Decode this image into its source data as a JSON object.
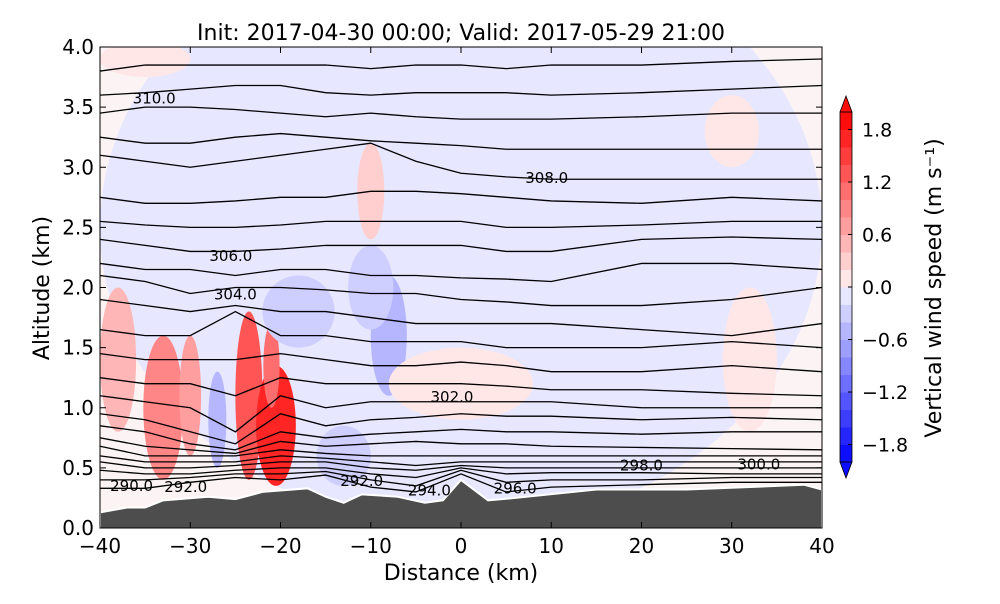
{
  "chart_data": {
    "type": "heatmap",
    "title": "Init: 2017-04-30 00:00; Valid: 2017-05-29 21:00",
    "xlabel": "Distance (km)",
    "ylabel": "Altitude (km)",
    "xlim": [
      -40,
      40
    ],
    "ylim": [
      0,
      4
    ],
    "xticks": [
      "−40",
      "−30",
      "−20",
      "−10",
      "0",
      "10",
      "20",
      "30",
      "40"
    ],
    "xtick_values": [
      -40,
      -30,
      -20,
      -10,
      0,
      10,
      20,
      30,
      40
    ],
    "yticks": [
      "0.0",
      "0.5",
      "1.0",
      "1.5",
      "2.0",
      "2.5",
      "3.0",
      "3.5",
      "4.0"
    ],
    "ytick_values": [
      0,
      0.5,
      1,
      1.5,
      2,
      2.5,
      3,
      3.5,
      4
    ],
    "colorbar": {
      "label": "Vertical wind speed (m s⁻¹)",
      "range": [
        -2,
        2
      ],
      "step": 0.2,
      "ticks": [
        "1.8",
        "1.2",
        "0.6",
        "0.0",
        "−0.6",
        "−1.2",
        "−1.8"
      ],
      "tick_values": [
        1.8,
        1.2,
        0.6,
        0,
        -0.6,
        -1.2,
        -1.8
      ],
      "pos_color": "#ff0000",
      "neg_color": "#0000ff"
    },
    "vertical_wind_features": [
      {
        "x": 0,
        "z": 2.5,
        "wx": 40,
        "wz": 2.5,
        "value": -0.1
      },
      {
        "x": -38,
        "z": 1.4,
        "wx": 2,
        "wz": 0.6,
        "value": 0.6
      },
      {
        "x": -33,
        "z": 1.0,
        "wx": 2.2,
        "wz": 0.6,
        "value": 1.0
      },
      {
        "x": -30,
        "z": 1.1,
        "wx": 1.2,
        "wz": 0.5,
        "value": 0.8
      },
      {
        "x": -27,
        "z": 0.9,
        "wx": 1.0,
        "wz": 0.4,
        "value": -0.6
      },
      {
        "x": -23.5,
        "z": 1.1,
        "wx": 1.5,
        "wz": 0.7,
        "value": 1.4
      },
      {
        "x": -20.5,
        "z": 0.85,
        "wx": 2.2,
        "wz": 0.5,
        "value": 1.8
      },
      {
        "x": -21,
        "z": 1.35,
        "wx": 0.9,
        "wz": 0.35,
        "value": 1.2
      },
      {
        "x": -8,
        "z": 1.6,
        "wx": 2,
        "wz": 0.5,
        "value": -0.6
      },
      {
        "x": -10,
        "z": 2.0,
        "wx": 2.5,
        "wz": 0.35,
        "value": -0.4
      },
      {
        "x": -18,
        "z": 1.8,
        "wx": 4,
        "wz": 0.3,
        "value": -0.3
      },
      {
        "x": -10,
        "z": 2.8,
        "wx": 1.5,
        "wz": 0.4,
        "value": 0.4
      },
      {
        "x": -13,
        "z": 0.6,
        "wx": 3,
        "wz": 0.25,
        "value": -0.4
      },
      {
        "x": 0,
        "z": 1.2,
        "wx": 8,
        "wz": 0.3,
        "value": 0.1
      },
      {
        "x": 32,
        "z": 1.4,
        "wx": 3,
        "wz": 0.6,
        "value": 0.2
      },
      {
        "x": -35,
        "z": 3.9,
        "wx": 5,
        "wz": 0.15,
        "value": 0.2
      },
      {
        "x": 30,
        "z": 3.3,
        "wx": 3,
        "wz": 0.3,
        "value": 0.1
      }
    ],
    "terrain": {
      "x": [
        -40,
        -37,
        -35,
        -33,
        -28,
        -25,
        -22,
        -17,
        -15,
        -13,
        -11,
        -7,
        -4,
        -2,
        0,
        3,
        6,
        15,
        25,
        35,
        38,
        40
      ],
      "z": [
        0.13,
        0.17,
        0.17,
        0.23,
        0.26,
        0.24,
        0.3,
        0.33,
        0.26,
        0.21,
        0.28,
        0.26,
        0.21,
        0.23,
        0.4,
        0.23,
        0.25,
        0.32,
        0.32,
        0.35,
        0.36,
        0.32
      ],
      "color": "#4d4d4d"
    },
    "theta_contour_x": [
      -40,
      -35,
      -30,
      -25,
      -20,
      -15,
      -10,
      -5,
      0,
      5,
      10,
      20,
      30,
      40
    ],
    "theta_contours": [
      [
        0.33,
        0.33,
        0.38,
        0.42,
        0.4,
        0.44,
        0.34,
        0.3,
        0.45,
        0.3,
        0.34,
        0.36,
        0.38,
        0.38
      ],
      [
        0.4,
        0.4,
        0.42,
        0.45,
        0.45,
        0.47,
        0.4,
        0.35,
        0.48,
        0.38,
        0.4,
        0.4,
        0.42,
        0.42
      ],
      [
        0.48,
        0.45,
        0.45,
        0.48,
        0.5,
        0.5,
        0.45,
        0.42,
        0.5,
        0.45,
        0.46,
        0.46,
        0.45,
        0.45
      ],
      [
        0.55,
        0.5,
        0.5,
        0.52,
        0.55,
        0.55,
        0.5,
        0.48,
        0.52,
        0.5,
        0.5,
        0.5,
        0.5,
        0.5
      ],
      [
        0.6,
        0.55,
        0.55,
        0.55,
        0.6,
        0.58,
        0.55,
        0.52,
        0.55,
        0.55,
        0.55,
        0.55,
        0.55,
        0.55
      ],
      [
        0.68,
        0.6,
        0.6,
        0.6,
        0.65,
        0.62,
        0.6,
        0.6,
        0.6,
        0.6,
        0.6,
        0.6,
        0.6,
        0.6
      ],
      [
        0.75,
        0.68,
        0.65,
        0.62,
        0.72,
        0.68,
        0.7,
        0.72,
        0.7,
        0.7,
        0.68,
        0.67,
        0.66,
        0.65
      ],
      [
        0.85,
        0.8,
        0.7,
        0.65,
        0.8,
        0.75,
        0.78,
        0.8,
        0.82,
        0.8,
        0.8,
        0.78,
        0.8,
        0.8
      ],
      [
        0.95,
        0.9,
        0.8,
        0.7,
        0.95,
        0.85,
        0.9,
        0.92,
        0.95,
        0.93,
        0.93,
        0.9,
        0.92,
        0.9
      ],
      [
        1.1,
        1.05,
        1.0,
        0.8,
        1.1,
        1.0,
        1.05,
        1.05,
        1.05,
        1.05,
        1.05,
        1.0,
        1.0,
        1.0
      ],
      [
        1.25,
        1.2,
        1.2,
        1.1,
        1.25,
        1.2,
        1.2,
        1.2,
        1.2,
        1.18,
        1.15,
        1.15,
        1.12,
        1.1
      ],
      [
        1.45,
        1.4,
        1.4,
        1.4,
        1.45,
        1.4,
        1.35,
        1.35,
        1.38,
        1.35,
        1.3,
        1.3,
        1.35,
        1.3
      ],
      [
        1.65,
        1.6,
        1.6,
        1.8,
        1.6,
        1.6,
        1.55,
        1.55,
        1.55,
        1.5,
        1.5,
        1.5,
        1.55,
        1.5
      ],
      [
        1.9,
        1.85,
        1.8,
        1.85,
        1.8,
        1.8,
        1.75,
        1.7,
        1.7,
        1.7,
        1.7,
        1.65,
        1.6,
        1.7
      ],
      [
        2.1,
        2.05,
        1.95,
        2.0,
        2.0,
        1.98,
        1.95,
        1.95,
        1.9,
        1.88,
        1.85,
        1.85,
        1.9,
        2.0
      ],
      [
        2.2,
        2.15,
        2.15,
        2.1,
        2.15,
        2.15,
        2.1,
        2.1,
        2.08,
        2.07,
        2.05,
        2.2,
        2.2,
        2.15
      ],
      [
        2.4,
        2.35,
        2.3,
        2.3,
        2.32,
        2.35,
        2.35,
        2.35,
        2.35,
        2.3,
        2.3,
        2.4,
        2.42,
        2.4
      ],
      [
        2.55,
        2.52,
        2.5,
        2.5,
        2.52,
        2.55,
        2.55,
        2.55,
        2.55,
        2.5,
        2.5,
        2.52,
        2.55,
        2.55
      ],
      [
        2.75,
        2.7,
        2.7,
        2.72,
        2.75,
        2.75,
        2.8,
        2.8,
        2.78,
        2.75,
        2.72,
        2.7,
        2.75,
        2.72
      ],
      [
        3.1,
        3.05,
        3.0,
        3.05,
        3.1,
        3.15,
        3.2,
        3.05,
        2.95,
        2.92,
        2.9,
        2.9,
        2.9,
        2.9
      ],
      [
        3.25,
        3.2,
        3.2,
        3.25,
        3.28,
        3.25,
        3.22,
        3.2,
        3.18,
        3.15,
        3.15,
        3.15,
        3.15,
        3.15
      ],
      [
        3.45,
        3.5,
        3.5,
        3.48,
        3.45,
        3.42,
        3.45,
        3.42,
        3.4,
        3.4,
        3.4,
        3.42,
        3.45,
        3.45
      ],
      [
        3.6,
        3.62,
        3.65,
        3.68,
        3.68,
        3.62,
        3.6,
        3.62,
        3.62,
        3.62,
        3.6,
        3.62,
        3.65,
        3.68
      ],
      [
        3.8,
        3.85,
        3.85,
        3.85,
        3.85,
        3.85,
        3.82,
        3.85,
        3.85,
        3.82,
        3.85,
        3.85,
        3.88,
        3.9
      ]
    ],
    "contour_labels": [
      {
        "text": "290.0",
        "x": -36.5,
        "z": 0.35
      },
      {
        "text": "292.0",
        "x": -30.5,
        "z": 0.34
      },
      {
        "text": "292.0",
        "x": -11,
        "z": 0.39
      },
      {
        "text": "294.0",
        "x": -3.5,
        "z": 0.31
      },
      {
        "text": "296.0",
        "x": 6,
        "z": 0.33
      },
      {
        "text": "298.0",
        "x": 20,
        "z": 0.52
      },
      {
        "text": "300.0",
        "x": 33,
        "z": 0.53
      },
      {
        "text": "302.0",
        "x": -1,
        "z": 1.09
      },
      {
        "text": "304.0",
        "x": -25,
        "z": 1.94
      },
      {
        "text": "306.0",
        "x": -25.5,
        "z": 2.26
      },
      {
        "text": "308.0",
        "x": 9.5,
        "z": 2.91
      },
      {
        "text": "310.0",
        "x": -34,
        "z": 3.57
      }
    ]
  }
}
